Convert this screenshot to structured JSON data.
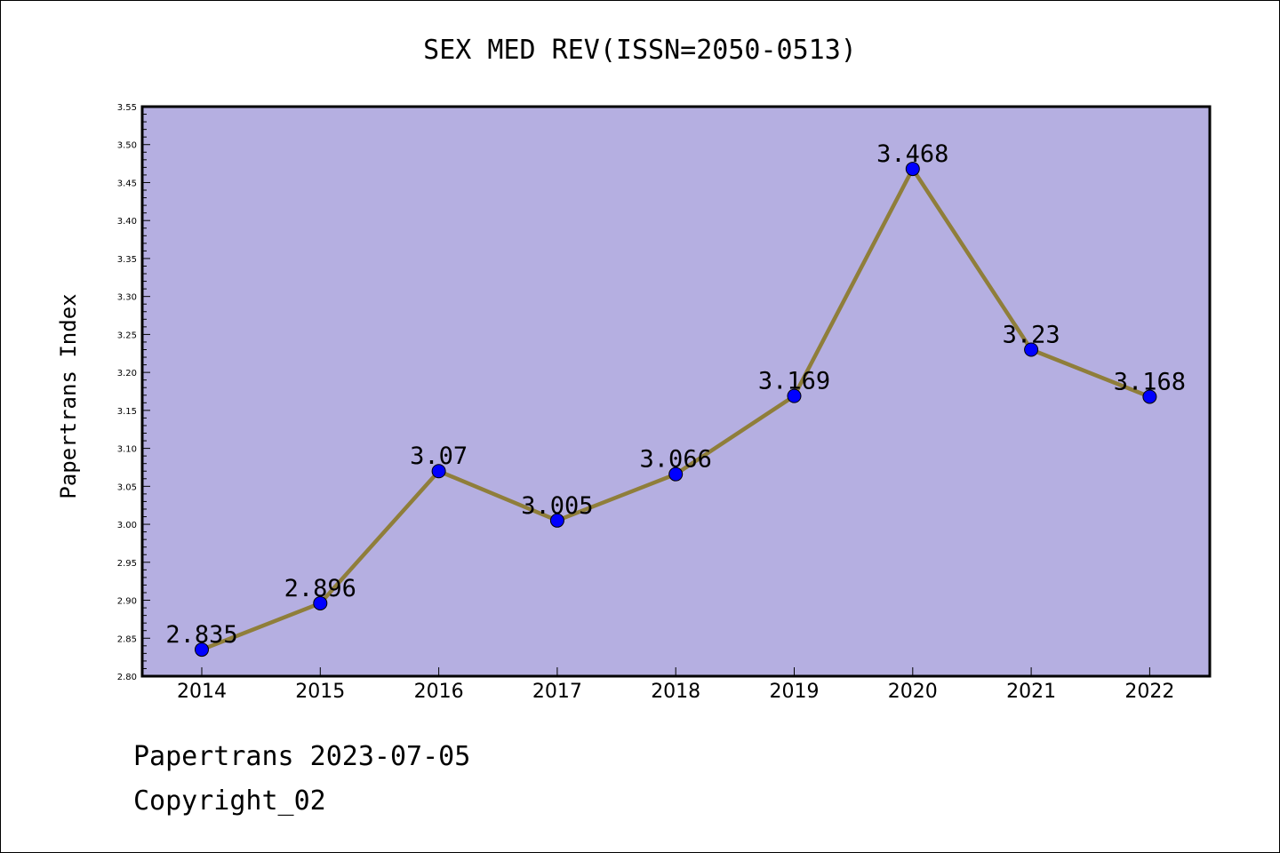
{
  "chart_data": {
    "type": "line",
    "title": "SEX MED REV(ISSN=2050-0513)",
    "xlabel": "",
    "ylabel": "Papertrans Index",
    "categories": [
      "2014",
      "2015",
      "2016",
      "2017",
      "2018",
      "2019",
      "2020",
      "2021",
      "2022"
    ],
    "series": [
      {
        "values": [
          2.835,
          2.896,
          3.07,
          3.005,
          3.066,
          3.169,
          3.468,
          3.23,
          3.168
        ],
        "data_labels": [
          "2.835",
          "2.896",
          "3.07",
          "3.005",
          "3.066",
          "3.169",
          "3.468",
          "3.23",
          "3.168"
        ]
      }
    ],
    "ylim": [
      2.8,
      3.55
    ],
    "yticks": [
      "2.80",
      "2.85",
      "2.90",
      "2.95",
      "3.00",
      "3.05",
      "3.10",
      "3.15",
      "3.20",
      "3.25",
      "3.30",
      "3.35",
      "3.40",
      "3.45",
      "3.50",
      "3.55"
    ],
    "grid": false,
    "colors": {
      "plot_background": "#b5afe1",
      "line": "#8f7e3a",
      "marker": "#0000ff"
    }
  },
  "footer": {
    "date_line": "Papertrans 2023-07-05",
    "copyright_line": "Copyright_02"
  }
}
